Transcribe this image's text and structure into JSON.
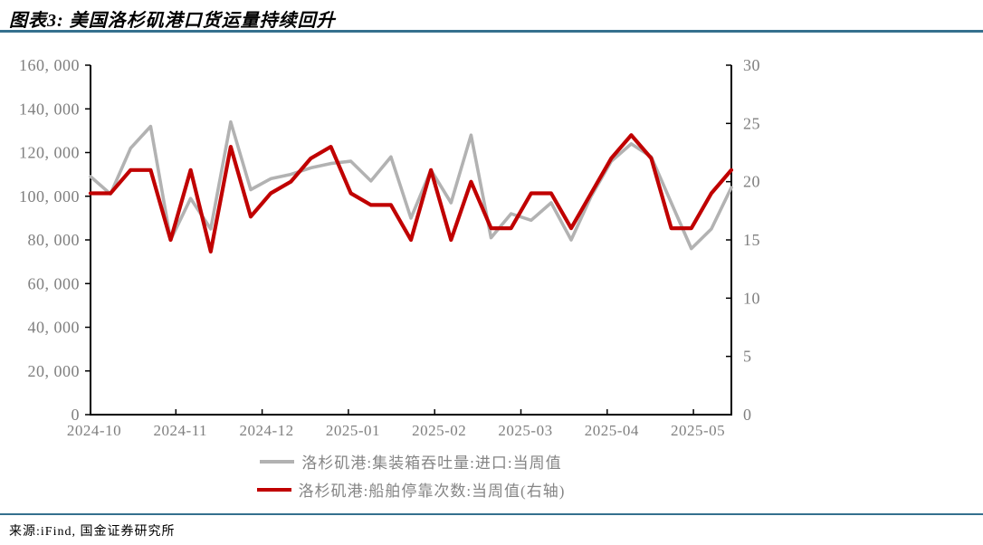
{
  "header": {
    "title": "图表3: 美国洛杉矶港口货运量持续回升"
  },
  "footer": {
    "source": "来源:iFind, 国金证券研究所"
  },
  "colors": {
    "accent_rule": "#35708e",
    "axis": "#000000",
    "tick_label": "#7f7f7f",
    "series_import": "#b2b2b2",
    "series_ships": "#c00000"
  },
  "chart_data": {
    "type": "line",
    "title": "美国洛杉矶港口货运量持续回升",
    "x_labels": [
      "2024-10",
      "2024-11",
      "2024-12",
      "2025-01",
      "2025-02",
      "2025-03",
      "2025-04",
      "2025-05"
    ],
    "left_axis": {
      "min": 0,
      "max": 160000,
      "step": 20000,
      "tick_labels": [
        "0",
        "20, 000",
        "40, 000",
        "60, 000",
        "80, 000",
        "100, 000",
        "120, 000",
        "140, 000",
        "160, 000"
      ]
    },
    "right_axis": {
      "min": 0,
      "max": 30,
      "step": 5,
      "tick_labels": [
        "0",
        "5",
        "10",
        "15",
        "20",
        "25",
        "30"
      ]
    },
    "grid": false,
    "legend_position": "bottom",
    "series": [
      {
        "name": "洛杉矶港:集装箱吞吐量:进口:当周值",
        "axis": "left",
        "color": "#b2b2b2",
        "values": [
          109000,
          101000,
          122000,
          132000,
          80000,
          99000,
          85000,
          134000,
          103000,
          108000,
          110000,
          113000,
          115000,
          116000,
          107000,
          118000,
          90000,
          112000,
          97000,
          128000,
          81000,
          92000,
          89000,
          97000,
          80000,
          100000,
          116000,
          124000,
          118000,
          97000,
          76000,
          85000,
          104000
        ]
      },
      {
        "name": "洛杉矶港:船舶停靠次数:当周值(右轴)",
        "axis": "right",
        "color": "#c00000",
        "values": [
          19,
          19,
          21,
          21,
          15,
          21,
          14,
          23,
          17,
          19,
          20,
          22,
          23,
          19,
          18,
          18,
          15,
          21,
          15,
          20,
          16,
          16,
          19,
          19,
          16,
          19,
          22,
          24,
          22,
          16,
          16,
          19,
          21
        ]
      }
    ]
  }
}
